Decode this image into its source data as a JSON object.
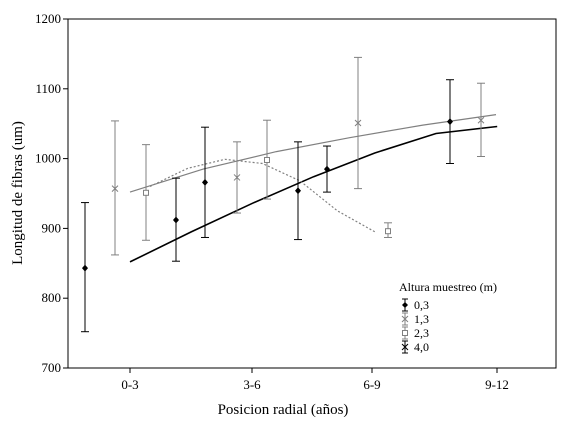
{
  "chart_data": {
    "type": "scatter",
    "title": "",
    "xlabel": "Posicion radial (años)",
    "ylabel": "Longitud de fibras (um)",
    "ylim": [
      700,
      1200
    ],
    "yticks": [
      700,
      800,
      900,
      1000,
      1100,
      1200
    ],
    "categories": [
      "0-3",
      "3-6",
      "6-9",
      "9-12"
    ],
    "grid": false,
    "legend": {
      "title": "Altura muestreo (m)",
      "placement": "bottom-right"
    },
    "series": [
      {
        "name": "0,3",
        "marker": "diamond",
        "color": "#000000",
        "line_style": "solid",
        "points": [
          {
            "x": 0,
            "y": 843,
            "low": 752,
            "high": 937
          },
          {
            "x": 1,
            "y": 912,
            "low": 853,
            "high": 972
          },
          {
            "x": 2,
            "y": 966,
            "low": 887,
            "high": 1045
          },
          {
            "x": 3,
            "y": 954,
            "low": 884,
            "high": 1024
          },
          {
            "x": 4,
            "y": 985,
            "low": 952,
            "high": 1018
          },
          {
            "x": 5,
            "y": 1053,
            "low": 993,
            "high": 1113
          }
        ],
        "fit": [
          {
            "x": 0,
            "y": 852
          },
          {
            "x": 1,
            "y": 895
          },
          {
            "x": 2,
            "y": 936
          },
          {
            "x": 3,
            "y": 974
          },
          {
            "x": 4,
            "y": 1008
          },
          {
            "x": 5,
            "y": 1036
          },
          {
            "x": 6,
            "y": 1046
          }
        ]
      },
      {
        "name": "1,3",
        "marker": "x",
        "color": "#808080",
        "line_style": "solid",
        "points": [
          {
            "x": 0,
            "y": 957,
            "low": 862,
            "high": 1054
          },
          {
            "x": 1,
            "y": 973,
            "low": 922,
            "high": 1024
          },
          {
            "x": 2,
            "y": 1051,
            "low": 957,
            "high": 1145
          },
          {
            "x": 3,
            "y": 1055,
            "low": 1003,
            "high": 1108
          }
        ],
        "fit": [
          {
            "x": 0,
            "y": 952
          },
          {
            "x": 1,
            "y": 985
          },
          {
            "x": 2,
            "y": 1010
          },
          {
            "x": 3,
            "y": 1030
          },
          {
            "x": 4,
            "y": 1048
          },
          {
            "x": 5,
            "y": 1063
          }
        ]
      },
      {
        "name": "2,3",
        "marker": "square",
        "color": "#808080",
        "line_style": "dotted",
        "points": [
          {
            "x": 0,
            "y": 951,
            "low": 883,
            "high": 1020
          },
          {
            "x": 1,
            "y": 998,
            "low": 942,
            "high": 1055
          },
          {
            "x": 2,
            "y": 896,
            "low": 887,
            "high": 908
          }
        ],
        "fit": [
          {
            "x": 0,
            "y": 960
          },
          {
            "x": 0.5,
            "y": 986
          },
          {
            "x": 1,
            "y": 999
          },
          {
            "x": 1.5,
            "y": 993
          },
          {
            "x": 2,
            "y": 968
          },
          {
            "x": 2.5,
            "y": 925
          },
          {
            "x": 3,
            "y": 895
          }
        ]
      },
      {
        "name": "4,0",
        "marker": "x",
        "color": "#000000",
        "line_style": "none",
        "points": []
      }
    ]
  }
}
